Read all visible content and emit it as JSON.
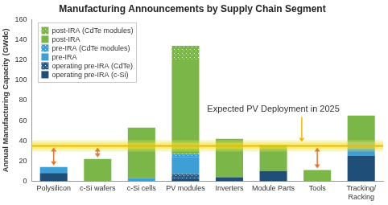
{
  "chart_data": {
    "type": "bar",
    "title": "Manufacturing Announcements by Supply Chain Segment",
    "y_label": "Annual Manufacturing Capacity (GWdc)",
    "categories": [
      "Polysilicon",
      "c-Si wafers",
      "c-Si cells",
      "PV modules",
      "Inverters",
      "Module Parts",
      "Tools",
      "Tracking/Racking"
    ],
    "series": [
      {
        "name": "operating pre-IRA (c-Si)",
        "color": "#1f4e79",
        "values": [
          8,
          0,
          0,
          3,
          4,
          10,
          0,
          25
        ]
      },
      {
        "name": "operating pre-IRA (CdTe)",
        "color": "#2a5c8a",
        "marker": "dots",
        "values": [
          0,
          0,
          0,
          4,
          0,
          0,
          0,
          0
        ]
      },
      {
        "name": "pre-IRA",
        "color": "#3e9fd6",
        "values": [
          6,
          0,
          3,
          17,
          0,
          0,
          0,
          13
        ]
      },
      {
        "name": "pre-IRA (CdTe modules)",
        "color": "#3e9fd6",
        "marker": "dots",
        "values": [
          0,
          0,
          0,
          3,
          0,
          0,
          0,
          0
        ]
      },
      {
        "name": "post-IRA",
        "color": "#7ab648",
        "values": [
          0,
          22,
          50,
          92,
          38,
          26,
          11,
          27
        ]
      },
      {
        "name": "post-IRA (CdTe modules)",
        "color": "#7ab648",
        "marker": "dots",
        "values": [
          0,
          0,
          0,
          15,
          0,
          0,
          0,
          0
        ]
      }
    ],
    "stacked": true,
    "ylim": [
      0,
      160
    ],
    "yticks": [
      0,
      20,
      40,
      60,
      80,
      100,
      120,
      140,
      160
    ],
    "grid": false,
    "legend": "upper left",
    "reference_line": {
      "label": "Expected PV Deployment in 2025",
      "value": 35
    },
    "gap_arrows": [
      "Polysilicon",
      "c-Si wafers",
      "Tools"
    ]
  }
}
